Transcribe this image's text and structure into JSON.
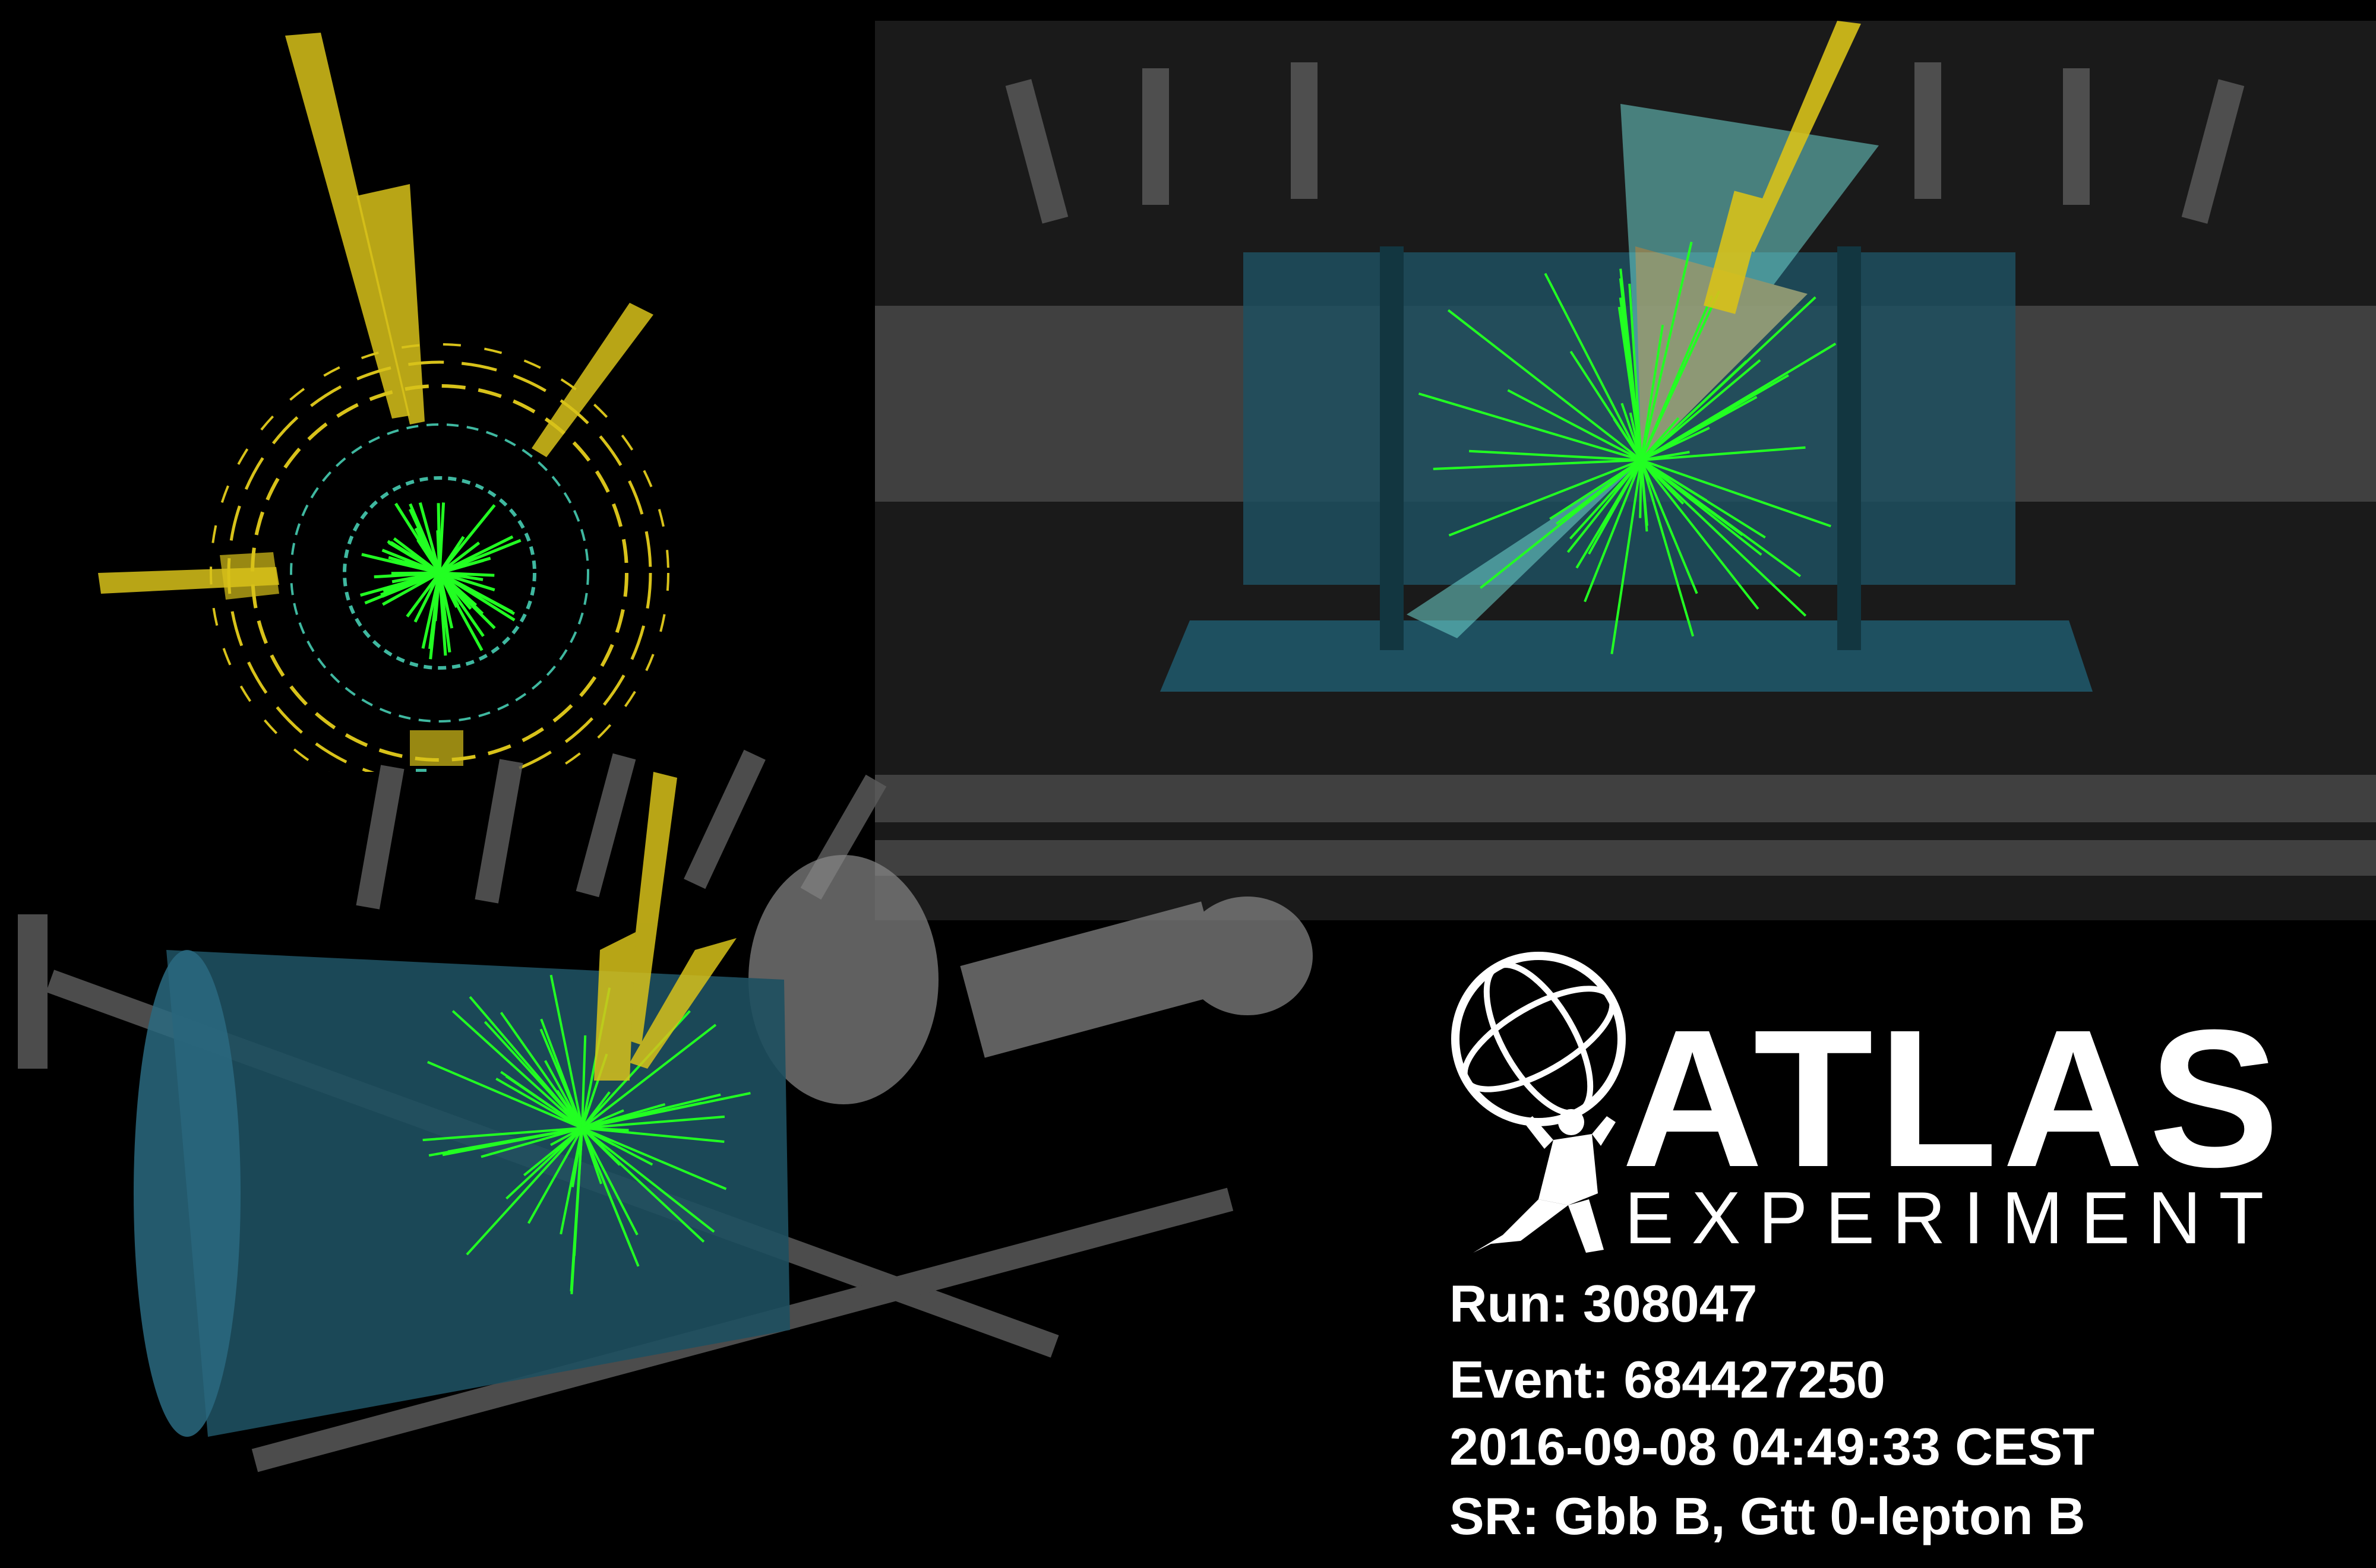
{
  "logo": {
    "title": "ATLAS",
    "subtitle": "EXPERIMENT"
  },
  "event_info": {
    "run": "Run: 308047",
    "event": "Event: 684427250",
    "datetime": "2016-09-08 04:49:33 CEST",
    "signal_region": "SR: Gbb B, Gtt 0-lepton B"
  },
  "colors": {
    "background": "#000000",
    "tracks": "#22ff22",
    "calorimeter_towers": "#d8c21a",
    "muon_chambers": "#3fb8a0",
    "detector_body": "#1e5060",
    "jet_cone": "#6fd6d0"
  }
}
